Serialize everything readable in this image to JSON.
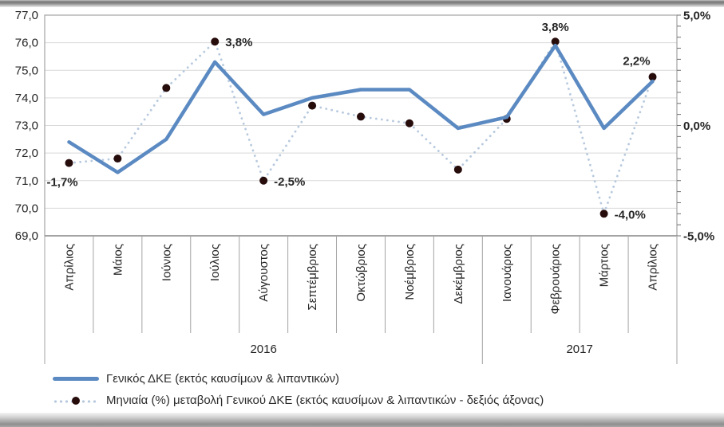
{
  "legend": {
    "items": [
      {
        "label": "Γενικός ΔΚΕ (εκτός καυσίμων & λιπαντικών)"
      },
      {
        "label": "Μηνιαία (%) μεταβολή Γενικού ΔΚΕ (εκτός καυσίμων & λιπαντικών - δεξιός άξονας)"
      }
    ]
  },
  "colors": {
    "index_line": "#5b8ac2",
    "pct_dotted_line": "#b7c9de",
    "pct_marker": "#270c0c",
    "annotation_red": "#e0192e",
    "annotation_black": "#1f1f1f",
    "gridline": "#d9d9d9",
    "plot_border": "#a3a3a3",
    "axis_line": "#8c8c8c"
  },
  "chart_data": {
    "type": "line",
    "title": "",
    "categories": [
      "Απρίλιος",
      "Μάιος",
      "Ιούνιος",
      "Ιούλιος",
      "Αύγουστος",
      "Σεπτέμβριος",
      "Οκτώβριος",
      "Νοέμβριος",
      "Δεκέμβριος",
      "Ιανουάριος",
      "Φεβρουάριος",
      "Μάρτιος",
      "Απρίλιος"
    ],
    "year_groups": [
      {
        "label": "2016",
        "from": 0,
        "to": 8
      },
      {
        "label": "2017",
        "from": 9,
        "to": 12
      }
    ],
    "series": [
      {
        "name": "Γενικός ΔΚΕ (εκτός καυσίμων & λιπαντικών)",
        "axis": "left",
        "style": "solid",
        "values": [
          72.4,
          71.3,
          72.5,
          75.3,
          73.4,
          74.0,
          74.3,
          74.3,
          72.9,
          73.3,
          75.9,
          72.9,
          74.6
        ]
      },
      {
        "name": "Μηνιαία (%) μεταβολή Γενικού ΔΚΕ (εκτός καυσίμων & λιπαντικών - δεξιός άξονας)",
        "axis": "right",
        "style": "dotted",
        "values": [
          -1.7,
          -1.5,
          1.7,
          3.8,
          -2.5,
          0.9,
          0.4,
          0.1,
          -2.0,
          0.3,
          3.8,
          -4.0,
          2.2
        ]
      }
    ],
    "left_axis": {
      "min": 69,
      "max": 77,
      "ticks": [
        {
          "label": "77,0",
          "value": 77
        },
        {
          "label": "76,0",
          "value": 76
        },
        {
          "label": "75,0",
          "value": 75
        },
        {
          "label": "74,0",
          "value": 74
        },
        {
          "label": "73,0",
          "value": 73
        },
        {
          "label": "72,0",
          "value": 72
        },
        {
          "label": "71,0",
          "value": 71
        },
        {
          "label": "70,0",
          "value": 70
        },
        {
          "label": "69,0",
          "value": 69
        }
      ]
    },
    "right_axis": {
      "min": -5,
      "max": 5,
      "minor_tick_step": 0.5,
      "ticks": [
        {
          "label": "5,0%",
          "value": 5
        },
        {
          "label": "0,0%",
          "value": 0
        },
        {
          "label": "-5,0%",
          "value": -5
        }
      ]
    },
    "annotations": [
      {
        "index": 0,
        "text": "-1,7%",
        "color": "#e0192e",
        "placement": "below-left"
      },
      {
        "index": 3,
        "text": "3,8%",
        "color": "#1f1f1f",
        "placement": "right"
      },
      {
        "index": 4,
        "text": "-2,5%",
        "color": "#e0192e",
        "placement": "right"
      },
      {
        "index": 10,
        "text": "3,8%",
        "color": "#1f1f1f",
        "placement": "above"
      },
      {
        "index": 11,
        "text": "-4,0%",
        "color": "#e0192e",
        "placement": "right"
      },
      {
        "index": 12,
        "text": "2,2%",
        "color": "#1f1f1f",
        "placement": "above-left"
      }
    ],
    "grid": true,
    "legend_position": "bottom-left"
  }
}
